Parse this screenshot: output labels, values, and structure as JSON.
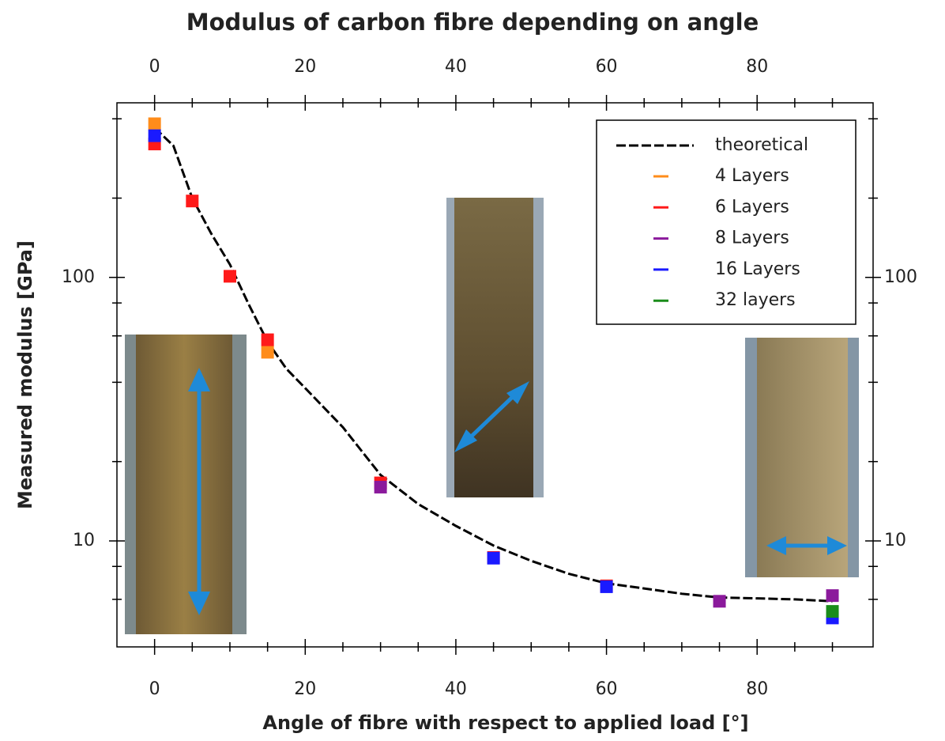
{
  "chart_data": {
    "type": "scatter",
    "title": "Modulus of carbon fibre depending on angle",
    "xlabel": "Angle of fibre with respect to applied load [°]",
    "ylabel": "Measured modulus [GPa]",
    "xlim": [
      -5,
      95.4
    ],
    "ylim": [
      3.96,
      460
    ],
    "xticks": [
      0,
      20,
      40,
      60,
      80
    ],
    "xminorticks": [
      5,
      10,
      15,
      25,
      30,
      35,
      45,
      50,
      55,
      65,
      70,
      75,
      85,
      90
    ],
    "yticks": [
      10,
      100
    ],
    "yminorticks": [
      6,
      8,
      20,
      40,
      60,
      80,
      200,
      400
    ],
    "ylog": true,
    "grid": false,
    "legend": "upper right",
    "line": {
      "name": "theoretical",
      "color": "#000000",
      "x": [
        0,
        2.5,
        5,
        7.5,
        10,
        12.5,
        15,
        17.5,
        20,
        25,
        30,
        35,
        40,
        45,
        50,
        55,
        60,
        65,
        70,
        75,
        80,
        85,
        90
      ],
      "values": [
        370,
        316,
        200,
        147,
        112,
        79,
        57,
        45,
        38,
        27,
        17.8,
        13.8,
        11.4,
        9.6,
        8.4,
        7.5,
        6.9,
        6.6,
        6.3,
        6.1,
        6.05,
        6.0,
        5.9
      ]
    },
    "series": [
      {
        "name": "4 Layers",
        "color": "#ff8c1a",
        "x": [
          0,
          15
        ],
        "values": [
          383,
          52
        ]
      },
      {
        "name": "6 Layers",
        "color": "#ff1a1a",
        "x": [
          0,
          5,
          10,
          15,
          30,
          45,
          60
        ],
        "values": [
          321,
          195,
          101,
          58,
          16.6,
          8.65,
          6.75
        ]
      },
      {
        "name": "8 Layers",
        "color": "#8b1a9c",
        "x": [
          30,
          75,
          90
        ],
        "values": [
          16.0,
          5.9,
          6.2
        ]
      },
      {
        "name": "16 Layers",
        "color": "#1a1aff",
        "x": [
          0,
          45,
          60,
          90
        ],
        "values": [
          345,
          8.6,
          6.7,
          5.1
        ]
      },
      {
        "name": "32 layers",
        "color": "#1a8c1a",
        "x": [
          90
        ],
        "values": [
          5.4
        ]
      }
    ]
  }
}
